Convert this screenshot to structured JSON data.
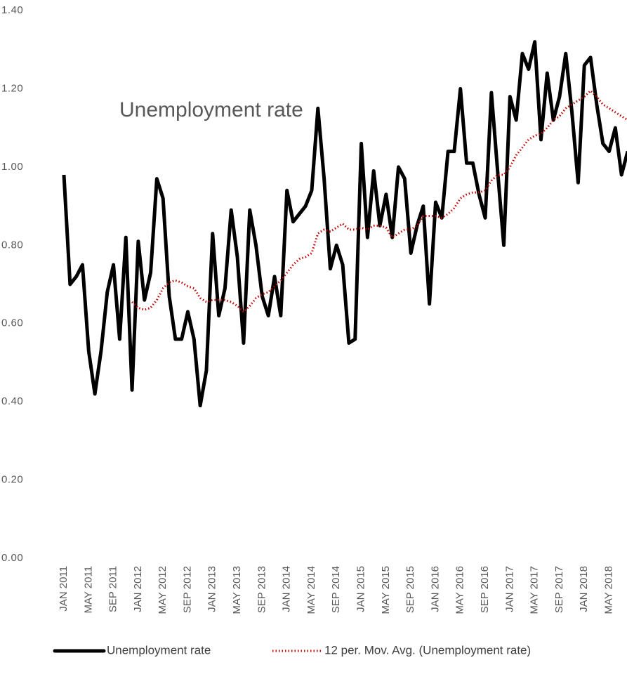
{
  "chart_data": {
    "type": "line",
    "annotation": "Unemployment rate",
    "categories": [
      "JAN 2011",
      null,
      null,
      null,
      "MAY 2011",
      null,
      null,
      null,
      "SEP 2011",
      null,
      null,
      null,
      "JAN 2012",
      null,
      null,
      null,
      "MAY 2012",
      null,
      null,
      null,
      "SEP 2012",
      null,
      null,
      null,
      "JAN 2013",
      null,
      null,
      null,
      "MAY 2013",
      null,
      null,
      null,
      "SEP 2013",
      null,
      null,
      null,
      "JAN 2014",
      null,
      null,
      null,
      "MAY 2014",
      null,
      null,
      null,
      "SEP 2014",
      null,
      null,
      null,
      "JAN 2015",
      null,
      null,
      null,
      "MAY 2015",
      null,
      null,
      null,
      "SEP 2015",
      null,
      null,
      null,
      "JAN 2016",
      null,
      null,
      null,
      "MAY 2016",
      null,
      null,
      null,
      "SEP 2016",
      null,
      null,
      null,
      "JAN 2017",
      null,
      null,
      null,
      "MAY 2017",
      null,
      null,
      null,
      "SEP 2017",
      null,
      null,
      null,
      "JAN 2018",
      null,
      null,
      null,
      "MAY 2018",
      null,
      null,
      null
    ],
    "series": [
      {
        "name": "Unemployment rate",
        "color": "#000000",
        "style": "solid",
        "values": [
          0.98,
          0.7,
          0.72,
          0.75,
          0.53,
          0.42,
          0.53,
          0.68,
          0.75,
          0.56,
          0.82,
          0.43,
          0.81,
          0.66,
          0.73,
          0.97,
          0.92,
          0.67,
          0.56,
          0.56,
          0.63,
          0.56,
          0.39,
          0.48,
          0.83,
          0.62,
          0.69,
          0.89,
          0.77,
          0.55,
          0.89,
          0.8,
          0.67,
          0.62,
          0.72,
          0.62,
          0.94,
          0.86,
          0.88,
          0.9,
          0.94,
          1.15,
          0.97,
          0.74,
          0.8,
          0.75,
          0.55,
          0.56,
          1.06,
          0.82,
          0.99,
          0.85,
          0.93,
          0.82,
          1.0,
          0.97,
          0.78,
          0.85,
          0.9,
          0.65,
          0.91,
          0.87,
          1.04,
          1.04,
          1.2,
          1.01,
          1.01,
          0.93,
          0.87,
          1.19,
          0.99,
          0.8,
          1.18,
          1.12,
          1.29,
          1.25,
          1.32,
          1.07,
          1.24,
          1.12,
          1.18,
          1.29,
          1.14,
          0.96,
          1.26,
          1.28,
          1.16,
          1.06,
          1.04,
          1.1,
          0.98,
          1.04
        ]
      },
      {
        "name": "12 per. Mov. Avg. (Unemployment rate)",
        "color": "#c00000",
        "style": "dotted",
        "values": [
          null,
          null,
          null,
          null,
          null,
          null,
          null,
          null,
          null,
          null,
          null,
          0.655,
          0.64,
          0.635,
          0.64,
          0.66,
          0.69,
          0.705,
          0.71,
          0.705,
          0.695,
          0.69,
          0.665,
          0.655,
          0.66,
          0.66,
          0.66,
          0.655,
          0.645,
          0.63,
          0.645,
          0.665,
          0.675,
          0.68,
          0.695,
          0.71,
          0.73,
          0.75,
          0.765,
          0.77,
          0.78,
          0.83,
          0.84,
          0.835,
          0.845,
          0.855,
          0.84,
          0.84,
          0.845,
          0.84,
          0.85,
          0.85,
          0.845,
          0.82,
          0.83,
          0.84,
          0.84,
          0.85,
          0.875,
          0.875,
          0.875,
          0.87,
          0.88,
          0.895,
          0.92,
          0.93,
          0.935,
          0.935,
          0.94,
          0.965,
          0.98,
          0.98,
          1.0,
          1.03,
          1.05,
          1.07,
          1.08,
          1.085,
          1.1,
          1.12,
          1.13,
          1.15,
          1.16,
          1.17,
          1.18,
          1.195,
          1.18,
          1.16,
          1.15,
          1.14,
          1.13,
          1.12
        ]
      }
    ],
    "ylim": [
      0,
      1.4
    ],
    "yticks": [
      {
        "value": 0,
        "label": "0.00"
      },
      {
        "value": 0.2,
        "label": "0.20"
      },
      {
        "value": 0.4,
        "label": "0.40"
      },
      {
        "value": 0.6,
        "label": "0.60"
      },
      {
        "value": 0.8,
        "label": "0.80"
      },
      {
        "value": 1.0,
        "label": "1.00"
      },
      {
        "value": 1.2,
        "label": "1.20"
      },
      {
        "value": 1.4,
        "label": "1.40"
      }
    ],
    "grid": false,
    "legend": "bottom"
  }
}
